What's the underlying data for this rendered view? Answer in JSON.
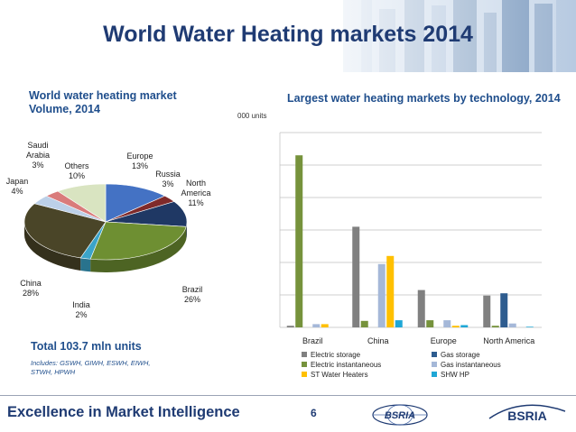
{
  "slide": {
    "title": "World Water Heating markets 2014",
    "footer": "Excellence in Market Intelligence",
    "page_number": "6",
    "logo_text": "BSRIA",
    "colors": {
      "title": "#1f3b73",
      "subtitle": "#1f4e8c"
    }
  },
  "left": {
    "subtitle_line1": "World water heating market",
    "subtitle_line2": "Volume, 2014",
    "total": "Total 103.7 mln units",
    "includes_line1": "Includes: GSWH, GIWH, ESWH, EIWH,",
    "includes_line2": "STWH, HPWH"
  },
  "right": {
    "subtitle": "Largest water heating markets by technology, 2014",
    "unit_note": "000 units"
  },
  "chart_data": [
    {
      "type": "pie",
      "title": "World water heating market Volume, 2014",
      "slices": [
        {
          "label": "Europe",
          "value": 13,
          "display": "13%",
          "color": "#4472c4"
        },
        {
          "label": "Russia",
          "value": 3,
          "display": "3%",
          "color": "#7f2a2a"
        },
        {
          "label": "North America",
          "value": 11,
          "display": "11%",
          "color": "#1f3864"
        },
        {
          "label": "Brazil",
          "value": 26,
          "display": "26%",
          "color": "#6e8f32"
        },
        {
          "label": "India",
          "value": 2,
          "display": "2%",
          "color": "#3ba4c9"
        },
        {
          "label": "China",
          "value": 28,
          "display": "28%",
          "color": "#4a4528"
        },
        {
          "label": "Japan",
          "value": 4,
          "display": "4%",
          "color": "#bcd0e8"
        },
        {
          "label": "Saudi Arabia",
          "value": 3,
          "display": "3%",
          "color": "#d97b7b"
        },
        {
          "label": "Others",
          "value": 10,
          "display": "10%",
          "color": "#d9e4c1"
        }
      ]
    },
    {
      "type": "bar",
      "title": "Largest water heating markets by technology, 2014",
      "ylabel": "000 units",
      "ylim": [
        0,
        60
      ],
      "grid": true,
      "legend_position": "bottom",
      "categories": [
        "Brazil",
        "China",
        "Europe",
        "North America"
      ],
      "series": [
        {
          "name": "Electric storage",
          "color": "#808080",
          "values": [
            0.5,
            31,
            11.5,
            9.8
          ]
        },
        {
          "name": "Electric instantaneous",
          "color": "#76923c",
          "values": [
            53,
            2,
            2.2,
            0.5
          ]
        },
        {
          "name": "ST Water Heaters",
          "color": "#ffc000",
          "values": [
            1,
            22,
            0.5,
            0
          ]
        },
        {
          "name": "Gas storage",
          "color": "#2e5c8f",
          "values": [
            0,
            0,
            0,
            10.5
          ]
        },
        {
          "name": "Gas instantaneous",
          "color": "#a5b8d8",
          "values": [
            1,
            19.5,
            2.2,
            1.2
          ]
        },
        {
          "name": "SHW HP",
          "color": "#1fa7d6",
          "values": [
            0,
            2.2,
            0.7,
            0.2
          ]
        }
      ]
    }
  ]
}
